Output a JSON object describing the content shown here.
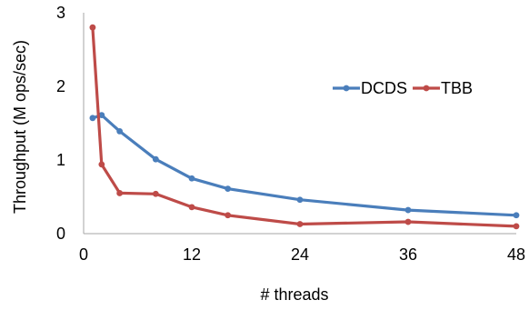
{
  "chart_data": {
    "type": "line",
    "title": "",
    "xlabel": "# threads",
    "ylabel": "Throughput (M ops/sec)",
    "xlim": [
      0,
      48
    ],
    "ylim": [
      0,
      3
    ],
    "xticks": [
      0,
      12,
      24,
      36,
      48
    ],
    "yticks": [
      0,
      1,
      2,
      3
    ],
    "grid": false,
    "legend_position": "right",
    "series": [
      {
        "name": "DCDS",
        "color": "#4a7ebb",
        "x": [
          1,
          2,
          4,
          8,
          12,
          16,
          24,
          36,
          48
        ],
        "y": [
          1.57,
          1.61,
          1.39,
          1.01,
          0.75,
          0.61,
          0.46,
          0.32,
          0.25
        ]
      },
      {
        "name": "TBB",
        "color": "#be4b48",
        "x": [
          1,
          2,
          4,
          8,
          12,
          16,
          24,
          36,
          48
        ],
        "y": [
          2.8,
          0.94,
          0.55,
          0.54,
          0.36,
          0.25,
          0.13,
          0.16,
          0.1
        ]
      }
    ]
  }
}
